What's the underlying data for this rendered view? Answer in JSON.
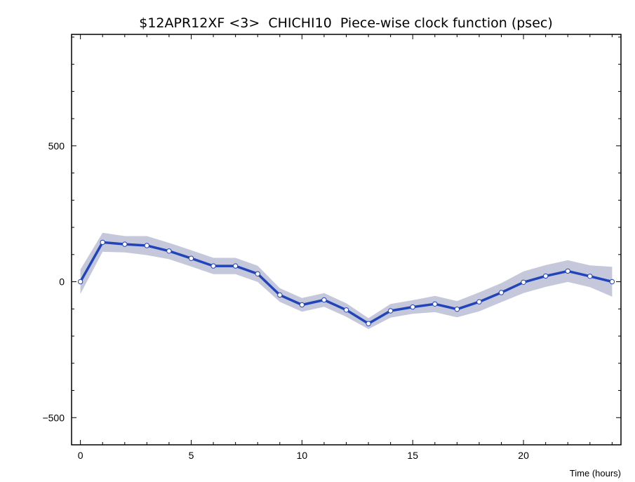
{
  "chart_data": {
    "type": "line",
    "title": "$12APR12XF <3>  CHICHI10  Piece-wise clock function (psec)",
    "xlabel": "Time (hours)",
    "ylabel": "",
    "xlim": [
      -0.4,
      24.4
    ],
    "ylim": [
      -600,
      910
    ],
    "x_ticks": [
      0,
      5,
      10,
      15,
      20
    ],
    "y_ticks": [
      -500,
      0,
      500
    ],
    "grid": false,
    "x": [
      0,
      1,
      2,
      3,
      4,
      5,
      6,
      7,
      8,
      9,
      10,
      11,
      12,
      13,
      14,
      15,
      16,
      17,
      18,
      19,
      20,
      21,
      22,
      23,
      24
    ],
    "series": [
      {
        "values": [
          0,
          145,
          138,
          133,
          113,
          86,
          58,
          58,
          29,
          -49,
          -85,
          -67,
          -104,
          -154,
          -107,
          -93,
          -82,
          -101,
          -74,
          -40,
          -2,
          21,
          39,
          20,
          0
        ],
        "band_halfwidth": [
          45,
          35,
          30,
          35,
          30,
          30,
          30,
          30,
          30,
          25,
          25,
          25,
          25,
          20,
          25,
          25,
          30,
          30,
          35,
          35,
          40,
          40,
          40,
          40,
          55
        ]
      }
    ],
    "colors": {
      "line": "#2244bb",
      "band": "#c4c8da",
      "marker_fill": "#ffffff",
      "marker_stroke": "#2244bb"
    }
  }
}
